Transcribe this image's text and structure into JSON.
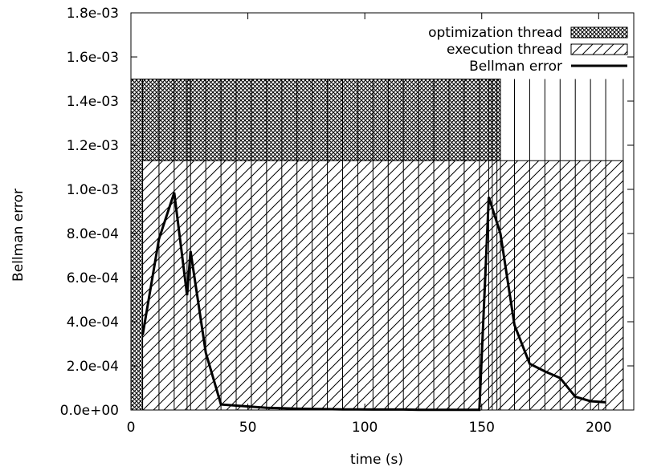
{
  "chart_data": {
    "type": "line",
    "title": "",
    "xlabel": "time (s)",
    "ylabel": "Bellman error",
    "xlim": [
      0,
      215
    ],
    "ylim": [
      0,
      0.0018
    ],
    "xticks": [
      0,
      50,
      100,
      150,
      200
    ],
    "xtick_labels": [
      "0",
      "50",
      "100",
      "150",
      "200"
    ],
    "yticks": [
      0,
      0.0002,
      0.0004,
      0.0006,
      0.0008,
      0.001,
      0.0012,
      0.0014,
      0.0016,
      0.0018
    ],
    "ytick_labels": [
      "0.0e+00",
      "2.0e-04",
      "4.0e-04",
      "6.0e-04",
      "8.0e-04",
      "1.0e-03",
      "1.2e-03",
      "1.4e-03",
      "1.6e-03",
      "1.8e-03"
    ],
    "grid": false,
    "legend_position": "top-right",
    "series": [
      {
        "name": "optimization thread",
        "kind": "interval-bars",
        "pattern": "crosshatch",
        "value": 0.0015,
        "boundaries": [
          0,
          5,
          12,
          18.5,
          24,
          25.5,
          153,
          154.5,
          156.5,
          158
        ]
      },
      {
        "name": "execution thread",
        "kind": "interval-bars",
        "pattern": "diagonal",
        "value": 0.00113,
        "start": 5,
        "end": 210.5,
        "boundaries": [
          5,
          12,
          18.5,
          24,
          25.5,
          32,
          38.5,
          45,
          51.5,
          58,
          64.5,
          71,
          77.5,
          84,
          90.5,
          97,
          103.5,
          110,
          116.5,
          123,
          129.5,
          136,
          142.5,
          149,
          153,
          154.5,
          156.5,
          158,
          164,
          170.5,
          177,
          183.5,
          190,
          196.5,
          203,
          210.5
        ]
      },
      {
        "name": "Bellman error",
        "kind": "line",
        "x": [
          5,
          12,
          18.5,
          24,
          25.5,
          32,
          38.5,
          45,
          51.5,
          58,
          64.5,
          71,
          77.5,
          84,
          90.5,
          97,
          103.5,
          110,
          116.5,
          123,
          129.5,
          136,
          142.5,
          149,
          153,
          158,
          164,
          170.5,
          177,
          183.5,
          190,
          196.5,
          203
        ],
        "y": [
          0.00034,
          0.000775,
          0.000985,
          0.00052,
          0.00072,
          0.00026,
          2.5e-05,
          2e-05,
          1.5e-05,
          1e-05,
          8e-06,
          6e-06,
          5e-06,
          4e-06,
          3e-06,
          3e-06,
          2e-06,
          2e-06,
          2e-06,
          1e-06,
          1e-06,
          1e-06,
          1e-06,
          1e-06,
          0.000965,
          0.0008,
          0.000385,
          0.00021,
          0.000175,
          0.000145,
          6e-05,
          4e-05,
          3.5e-05
        ]
      }
    ]
  }
}
